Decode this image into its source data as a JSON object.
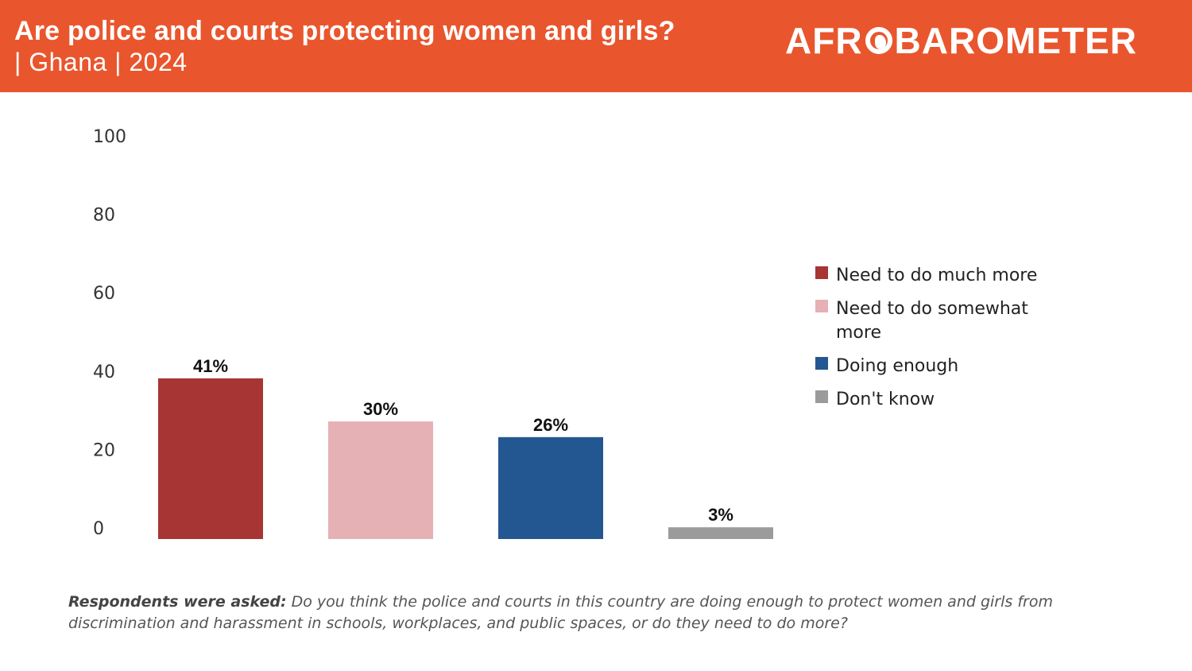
{
  "header": {
    "title": "Are police and courts protecting women and girls?",
    "subtitle": "| Ghana | 2024",
    "logo": "AFROBAROMETER"
  },
  "colors": {
    "header_bg": "#e9562d",
    "much_more": "#a63533",
    "somewhat_more": "#e5b1b4",
    "enough": "#235791",
    "dont_know": "#9b9b9b"
  },
  "chart_data": {
    "type": "bar",
    "categories": [
      "Need to do much more",
      "Need to do somewhat more",
      "Doing enough",
      "Don't know"
    ],
    "values": [
      41,
      30,
      26,
      3
    ],
    "data_labels": [
      "41%",
      "30%",
      "26%",
      "3%"
    ],
    "ylim": [
      0,
      100
    ],
    "yticks": [
      0,
      20,
      40,
      60,
      80,
      100
    ],
    "xlabel": "",
    "ylabel": "",
    "grid": false,
    "legend_position": "right",
    "colors": [
      "#a63533",
      "#e5b1b4",
      "#235791",
      "#9b9b9b"
    ]
  },
  "legend": {
    "items": [
      {
        "label": "Need to do much more",
        "color": "#a63533"
      },
      {
        "label": "Need to do somewhat more",
        "color": "#e5b1b4"
      },
      {
        "label": "Doing enough",
        "color": "#235791"
      },
      {
        "label": "Don't know",
        "color": "#9b9b9b"
      }
    ]
  },
  "footnote": {
    "lead": "Respondents were asked:",
    "text": " Do you think the police and courts in this country are doing enough to protect women and girls from discrimination and harassment in schools, workplaces, and public spaces, or do they need to do more?"
  }
}
